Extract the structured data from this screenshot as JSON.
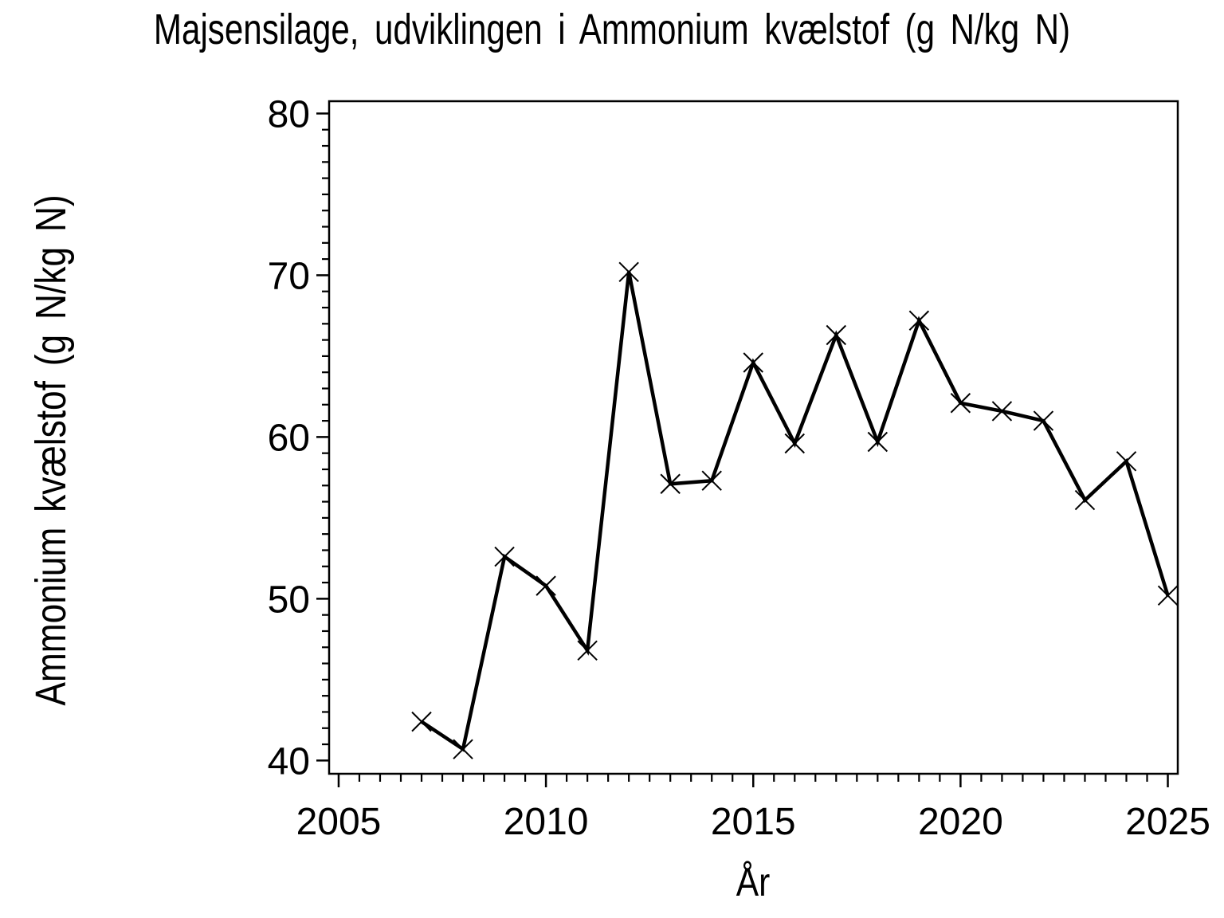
{
  "chart_data": {
    "type": "line",
    "title": "Majsensilage, udviklingen i Ammonium kvælstof (g N/kg N)",
    "xlabel": "År",
    "ylabel": "Ammonium kvælstof (g N/kg N)",
    "x": [
      2007,
      2008,
      2009,
      2010,
      2011,
      2012,
      2013,
      2014,
      2015,
      2016,
      2017,
      2018,
      2019,
      2020,
      2021,
      2022,
      2023,
      2024,
      2025
    ],
    "values": [
      42.4,
      40.7,
      52.6,
      50.8,
      46.8,
      70.2,
      57.1,
      57.3,
      64.6,
      59.6,
      66.3,
      59.7,
      67.2,
      62.1,
      61.6,
      61.0,
      56.1,
      58.5,
      50.2
    ],
    "x_major_ticks": [
      2005,
      2010,
      2015,
      2020,
      2025
    ],
    "x_minor_step": 0.5,
    "y_major_ticks": [
      40,
      50,
      60,
      70,
      80
    ],
    "y_minor_step": 1,
    "xlim": [
      2004.77,
      2025.24
    ],
    "ylim": [
      39.18,
      80.76
    ],
    "grid": false,
    "legend": "none",
    "marker": "x",
    "line_color": "#000000",
    "background_color": "#ffffff"
  }
}
